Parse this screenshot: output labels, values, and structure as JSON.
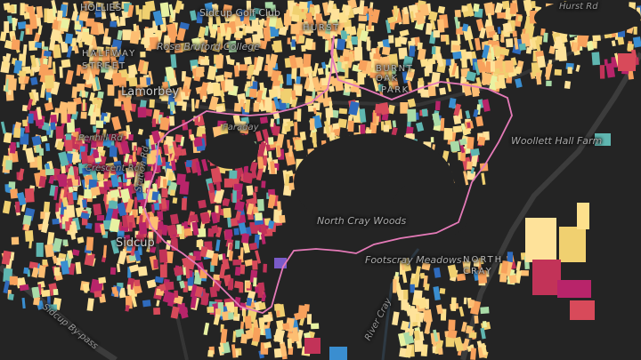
{
  "map": {
    "labels": {
      "sidcup_golf_club": "Sidcup Golf Club",
      "rose_bruford": "Rose Bruford College",
      "halfway_street": "HALFWAY STREET",
      "lamorbey": "Lamorbey",
      "burnt_oak": "BURNT OAK",
      "penhill_rd": "Penhill Rd",
      "faraday": "Faraday",
      "crescent_rd": "Crescent Rd",
      "sidcup": "Sidcup",
      "station_rd": "Station Rd",
      "north_cray_woods": "North Cray Woods",
      "woollett_hall": "Woollett Hall Farm",
      "footscray_meadows": "Footscray Meadows",
      "north_cray": "NORTH CRAY",
      "river_cray": "River Cray",
      "sidcup_bypass": "Sidcup By-pass",
      "hurst_rd": "Hurst Rd",
      "parkhurst": "HURST",
      "park": "PARK",
      "top_partial": "HOLLIES"
    },
    "palette": {
      "background": "#242424",
      "road": "#3a3a3a",
      "boundary": "#e57ab8",
      "building_colors": [
        "#fdbe72",
        "#fee29a",
        "#f8a15c",
        "#e8f2a2",
        "#a9dba7",
        "#5fb6b0",
        "#3a8ed0",
        "#2f6bbd",
        "#d84a5a",
        "#c23358",
        "#b8246a",
        "#7a5bc9",
        "#f0d070",
        "#fde08c"
      ]
    }
  }
}
